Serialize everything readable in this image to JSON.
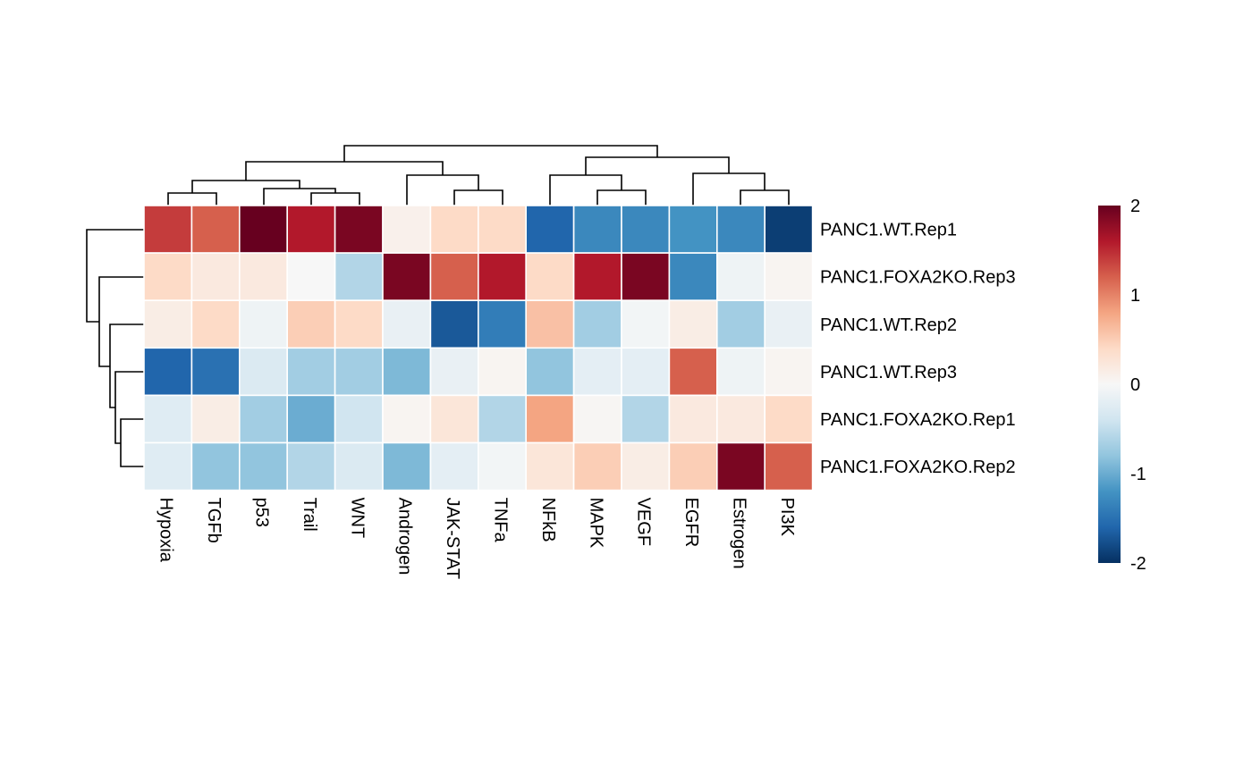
{
  "chart_data": {
    "type": "heatmap",
    "rows": [
      "PANC1.WT.Rep1",
      "PANC1.FOXA2KO.Rep3",
      "PANC1.WT.Rep2",
      "PANC1.WT.Rep3",
      "PANC1.FOXA2KO.Rep1",
      "PANC1.FOXA2KO.Rep2"
    ],
    "columns": [
      "Hypoxia",
      "TGFb",
      "p53",
      "Trail",
      "WNT",
      "Androgen",
      "JAK-STAT",
      "TNFa",
      "NFkB",
      "MAPK",
      "VEGF",
      "EGFR",
      "Estrogen",
      "PI3K"
    ],
    "values": [
      [
        1.4,
        1.2,
        2.0,
        1.6,
        1.9,
        0.1,
        0.4,
        0.4,
        -1.6,
        -1.3,
        -1.3,
        -1.2,
        -1.3,
        -1.9
      ],
      [
        0.4,
        0.2,
        0.2,
        0.0,
        -0.6,
        1.9,
        1.2,
        1.6,
        0.4,
        1.6,
        1.9,
        -1.3,
        -0.1,
        0.05
      ],
      [
        0.15,
        0.4,
        -0.1,
        0.5,
        0.4,
        -0.15,
        -1.7,
        -1.4,
        0.6,
        -0.7,
        -0.05,
        0.15,
        -0.7,
        -0.15
      ],
      [
        -1.6,
        -1.5,
        -0.3,
        -0.7,
        -0.7,
        -0.9,
        -0.15,
        0.05,
        -0.8,
        -0.2,
        -0.2,
        1.2,
        -0.1,
        0.05
      ],
      [
        -0.25,
        0.15,
        -0.7,
        -1.0,
        -0.4,
        0.05,
        0.25,
        -0.6,
        0.8,
        0.03,
        -0.6,
        0.2,
        0.2,
        0.4
      ],
      [
        -0.25,
        -0.8,
        -0.8,
        -0.6,
        -0.3,
        -0.9,
        -0.2,
        -0.05,
        0.25,
        0.5,
        0.15,
        0.5,
        1.9,
        1.2
      ]
    ],
    "legend": {
      "ticks": [
        "2",
        "1",
        "0",
        "-1",
        "-2"
      ],
      "tick_values": [
        2,
        1,
        0,
        -1,
        -2
      ],
      "range": [
        -2,
        2
      ],
      "colors": [
        "#053061",
        "#2166ac",
        "#4393c3",
        "#92c5de",
        "#d1e5f0",
        "#f7f7f7",
        "#fddbc7",
        "#f4a582",
        "#d6604d",
        "#b2182b",
        "#67001f"
      ],
      "placement": "right"
    },
    "row_dendrogram": true,
    "column_dendrogram": true
  }
}
